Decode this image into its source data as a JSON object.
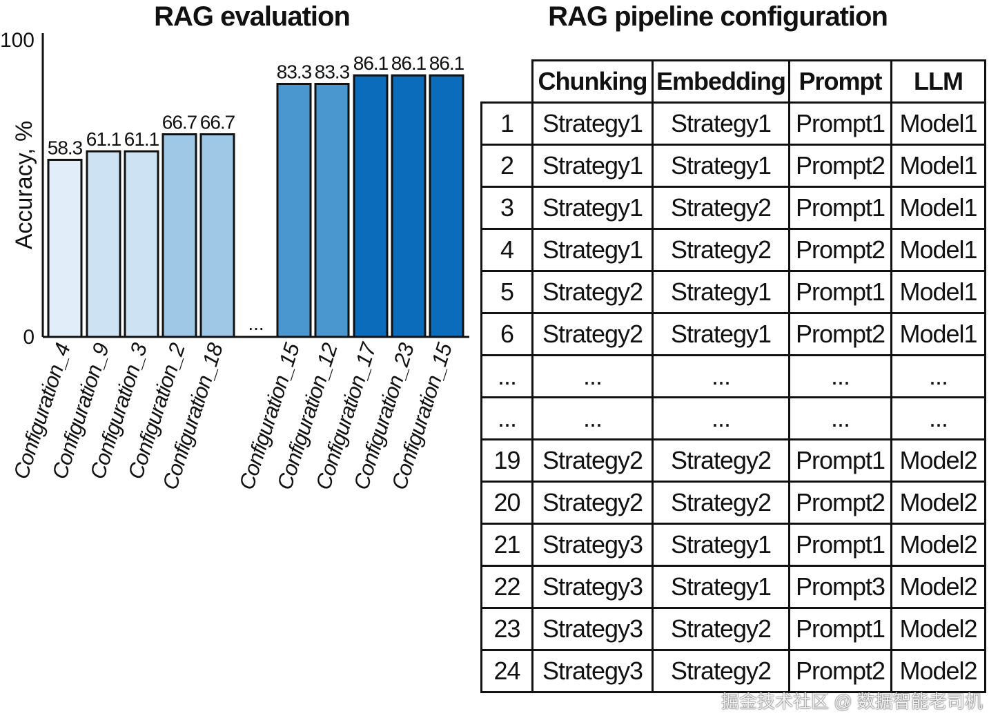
{
  "chart_data": {
    "type": "bar",
    "title": "RAG evaluation",
    "ylabel": "Accuracy, %",
    "xlabel": "",
    "ylim": [
      0,
      100
    ],
    "yticks": [
      "0",
      "100"
    ],
    "gap_label": "...",
    "categories": [
      "Configuration_4",
      "Configuration_9",
      "Configuration_3",
      "Configuration_2",
      "Configuration_18",
      "Configuration_15",
      "Configuration_12",
      "Configuration_17",
      "Configuration_23",
      "Configuration_15"
    ],
    "values": [
      58.3,
      61.1,
      61.1,
      66.7,
      66.7,
      83.3,
      83.3,
      86.1,
      86.1,
      86.1
    ],
    "value_labels": [
      "58.3",
      "61.1",
      "61.1",
      "66.7",
      "66.7",
      "83.3",
      "83.3",
      "86.1",
      "86.1",
      "86.1"
    ],
    "colors": [
      "#e1eef9",
      "#cde2f3",
      "#cde2f3",
      "#9fc8e7",
      "#9fc8e7",
      "#4a97d0",
      "#4a97d0",
      "#0a6cbb",
      "#0a6cbb",
      "#0a6cbb"
    ]
  },
  "table": {
    "title": "RAG pipeline configuration",
    "headers": [
      "Chunking",
      "Embedding",
      "Prompt",
      "LLM"
    ],
    "rows": [
      [
        "1",
        "Strategy1",
        "Strategy1",
        "Prompt1",
        "Model1"
      ],
      [
        "2",
        "Strategy1",
        "Strategy1",
        "Prompt2",
        "Model1"
      ],
      [
        "3",
        "Strategy1",
        "Strategy2",
        "Prompt1",
        "Model1"
      ],
      [
        "4",
        "Strategy1",
        "Strategy2",
        "Prompt2",
        "Model1"
      ],
      [
        "5",
        "Strategy2",
        "Strategy1",
        "Prompt1",
        "Model1"
      ],
      [
        "6",
        "Strategy2",
        "Strategy1",
        "Prompt2",
        "Model1"
      ],
      [
        "...",
        "...",
        "...",
        "...",
        "..."
      ],
      [
        "...",
        "...",
        "...",
        "...",
        "..."
      ],
      [
        "19",
        "Strategy2",
        "Strategy2",
        "Prompt1",
        "Model2"
      ],
      [
        "20",
        "Strategy2",
        "Strategy2",
        "Prompt2",
        "Model2"
      ],
      [
        "21",
        "Strategy3",
        "Strategy1",
        "Prompt1",
        "Model2"
      ],
      [
        "22",
        "Strategy3",
        "Strategy1",
        "Prompt3",
        "Model2"
      ],
      [
        "23",
        "Strategy3",
        "Strategy2",
        "Prompt1",
        "Model2"
      ],
      [
        "24",
        "Strategy3",
        "Strategy2",
        "Prompt2",
        "Model2"
      ]
    ]
  },
  "watermark": "掘金技术社区 @ 数据智能老司机"
}
